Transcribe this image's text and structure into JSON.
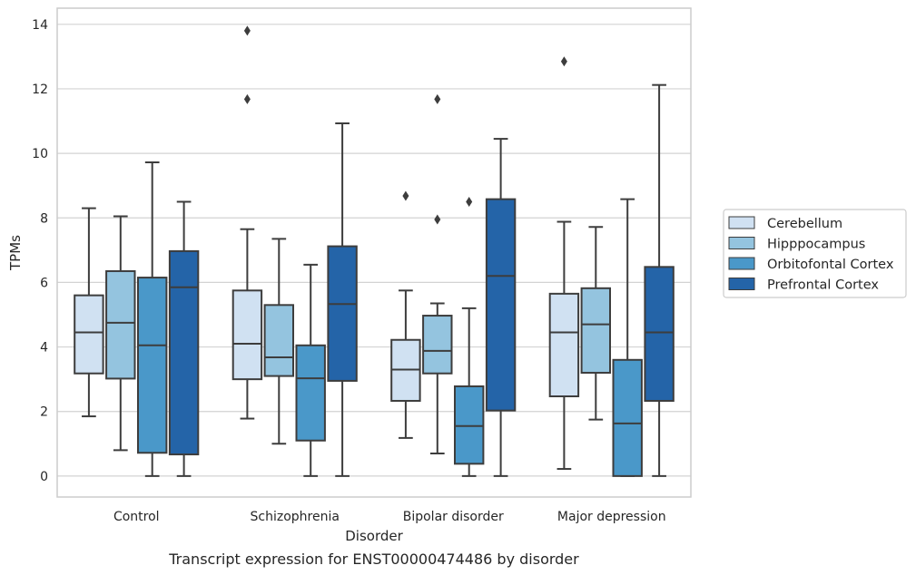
{
  "caption": "Transcript expression for ENST00000474486 by disorder",
  "colors": {
    "series": [
      "#d0e1f2",
      "#94c4df",
      "#4a98c9",
      "#2464a8"
    ],
    "line": "#3d3d3d",
    "grid": "#d3d3d3",
    "frame": "#cccccc"
  },
  "chart_data": {
    "type": "box",
    "xlabel": "Disorder",
    "ylabel": "TPMs",
    "ylim": [
      -0.65,
      14.5
    ],
    "yticks": [
      0,
      2,
      4,
      6,
      8,
      10,
      12,
      14
    ],
    "grid": true,
    "legend_position": "right",
    "categories": [
      "Control",
      "Schizophrenia",
      "Bipolar disorder",
      "Major depression"
    ],
    "series": [
      {
        "name": "Cerebellum",
        "boxes": [
          {
            "min": 1.85,
            "q1": 3.18,
            "median": 4.45,
            "q3": 5.6,
            "max": 8.3,
            "outliers": []
          },
          {
            "min": 1.78,
            "q1": 3.0,
            "median": 4.1,
            "q3": 5.75,
            "max": 7.65,
            "outliers": [
              13.8,
              11.68
            ]
          },
          {
            "min": 1.18,
            "q1": 2.33,
            "median": 3.3,
            "q3": 4.22,
            "max": 5.75,
            "outliers": [
              8.68
            ]
          },
          {
            "min": 0.22,
            "q1": 2.47,
            "median": 4.45,
            "q3": 5.65,
            "max": 7.88,
            "outliers": [
              12.85
            ]
          }
        ]
      },
      {
        "name": "Hipppocampus",
        "boxes": [
          {
            "min": 0.8,
            "q1": 3.02,
            "median": 4.75,
            "q3": 6.35,
            "max": 8.05,
            "outliers": []
          },
          {
            "min": 1.0,
            "q1": 3.1,
            "median": 3.68,
            "q3": 5.3,
            "max": 7.35,
            "outliers": []
          },
          {
            "min": 0.7,
            "q1": 3.18,
            "median": 3.88,
            "q3": 4.97,
            "max": 5.35,
            "outliers": [
              7.95,
              11.68
            ]
          },
          {
            "min": 1.75,
            "q1": 3.2,
            "median": 4.7,
            "q3": 5.82,
            "max": 7.72,
            "outliers": []
          }
        ]
      },
      {
        "name": "Orbitofontal Cortex",
        "boxes": [
          {
            "min": 0.0,
            "q1": 0.72,
            "median": 4.05,
            "q3": 6.15,
            "max": 9.72,
            "outliers": []
          },
          {
            "min": 0.0,
            "q1": 1.1,
            "median": 3.03,
            "q3": 4.05,
            "max": 6.55,
            "outliers": []
          },
          {
            "min": 0.0,
            "q1": 0.38,
            "median": 1.55,
            "q3": 2.78,
            "max": 5.2,
            "outliers": [
              8.5
            ]
          },
          {
            "min": 0.0,
            "q1": 0.0,
            "median": 1.63,
            "q3": 3.6,
            "max": 8.58,
            "outliers": []
          }
        ]
      },
      {
        "name": "Prefrontal Cortex",
        "boxes": [
          {
            "min": 0.0,
            "q1": 0.67,
            "median": 5.85,
            "q3": 6.97,
            "max": 8.5,
            "outliers": []
          },
          {
            "min": 0.0,
            "q1": 2.95,
            "median": 5.33,
            "q3": 7.12,
            "max": 10.93,
            "outliers": []
          },
          {
            "min": 0.0,
            "q1": 2.03,
            "median": 6.2,
            "q3": 8.58,
            "max": 10.45,
            "outliers": []
          },
          {
            "min": 0.0,
            "q1": 2.33,
            "median": 4.45,
            "q3": 6.48,
            "max": 12.12,
            "outliers": []
          }
        ]
      }
    ]
  }
}
